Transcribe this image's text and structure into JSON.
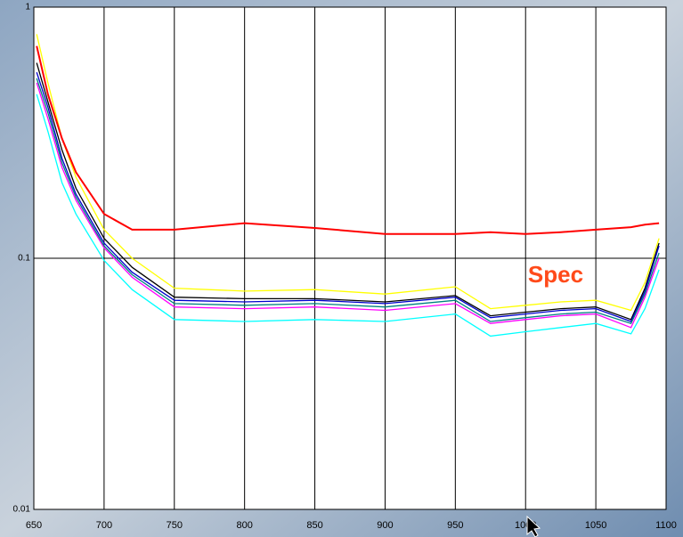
{
  "chart_data": {
    "type": "line",
    "log_scale": true,
    "grid": true,
    "annotation": "Spec",
    "x": [
      652,
      660,
      670,
      680,
      700,
      720,
      750,
      800,
      850,
      900,
      950,
      975,
      1000,
      1025,
      1050,
      1075,
      1085,
      1095
    ],
    "xlim": [
      650,
      1100
    ],
    "xticks": [
      650,
      700,
      750,
      800,
      850,
      900,
      950,
      1000,
      1050,
      1100
    ],
    "ylim": [
      0.01,
      1
    ],
    "yticks": [
      0.01,
      0.1,
      1
    ],
    "series": [
      {
        "color": "#ffff00",
        "values": [
          0.78,
          0.5,
          0.3,
          0.21,
          0.13,
          0.1,
          0.076,
          0.074,
          0.075,
          0.072,
          0.077,
          0.063,
          0.065,
          0.067,
          0.068,
          0.062,
          0.08,
          0.12
        ]
      },
      {
        "color": "#000000",
        "values": [
          0.6,
          0.42,
          0.27,
          0.19,
          0.12,
          0.092,
          0.07,
          0.069,
          0.069,
          0.067,
          0.071,
          0.059,
          0.061,
          0.063,
          0.064,
          0.057,
          0.076,
          0.115
        ]
      },
      {
        "color": "#0000cc",
        "values": [
          0.55,
          0.4,
          0.25,
          0.18,
          0.115,
          0.088,
          0.068,
          0.067,
          0.068,
          0.066,
          0.07,
          0.058,
          0.06,
          0.062,
          0.063,
          0.056,
          0.074,
          0.112
        ]
      },
      {
        "color": "#ff00ff",
        "values": [
          0.5,
          0.36,
          0.23,
          0.17,
          0.11,
          0.084,
          0.064,
          0.063,
          0.064,
          0.062,
          0.066,
          0.055,
          0.057,
          0.059,
          0.06,
          0.053,
          0.07,
          0.1
        ]
      },
      {
        "color": "#008080",
        "values": [
          0.52,
          0.38,
          0.24,
          0.175,
          0.112,
          0.086,
          0.066,
          0.065,
          0.066,
          0.064,
          0.068,
          0.056,
          0.058,
          0.06,
          0.061,
          0.055,
          0.072,
          0.105
        ]
      },
      {
        "color": "#00ffff",
        "values": [
          0.45,
          0.32,
          0.2,
          0.15,
          0.098,
          0.075,
          0.057,
          0.056,
          0.057,
          0.056,
          0.06,
          0.049,
          0.051,
          0.053,
          0.055,
          0.05,
          0.063,
          0.09
        ]
      },
      {
        "color": "#ff0000",
        "values": [
          0.7,
          0.45,
          0.3,
          0.22,
          0.15,
          0.13,
          0.13,
          0.138,
          0.132,
          0.125,
          0.125,
          0.127,
          0.125,
          0.127,
          0.13,
          0.133,
          0.136,
          0.138
        ]
      }
    ]
  }
}
